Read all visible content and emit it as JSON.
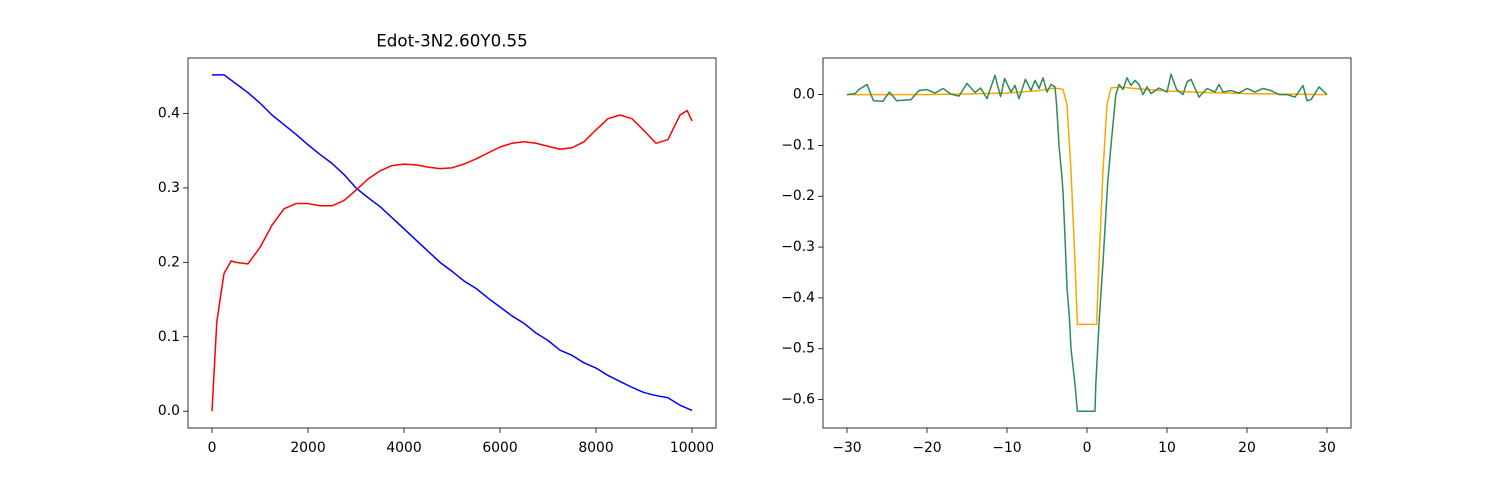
{
  "chart_data": [
    {
      "type": "line",
      "title": "Edot-3N2.60Y0.55",
      "xlim": [
        -500,
        10500
      ],
      "ylim": [
        -0.0226,
        0.4746
      ],
      "xticks": [
        0,
        2000,
        4000,
        6000,
        8000,
        10000
      ],
      "yticks": [
        {
          "value": 0,
          "label": "0.0"
        },
        {
          "value": 0.1,
          "label": "0.1"
        },
        {
          "value": 0.2,
          "label": "0.2"
        },
        {
          "value": 0.3,
          "label": "0.3"
        },
        {
          "value": 0.4,
          "label": "0.4"
        }
      ],
      "series": [
        {
          "color": "#0000ff",
          "x": [
            0,
            250,
            500,
            750,
            1000,
            1250,
            1500,
            1750,
            2000,
            2250,
            2500,
            2750,
            3000,
            3250,
            3500,
            3750,
            4000,
            4250,
            4500,
            4750,
            5000,
            5250,
            5500,
            5750,
            6000,
            6250,
            6500,
            6750,
            7000,
            7250,
            7500,
            7750,
            8000,
            8250,
            8500,
            8750,
            9000,
            9250,
            9500,
            9750,
            10000
          ],
          "values": [
            0.452,
            0.452,
            0.44,
            0.428,
            0.414,
            0.398,
            0.385,
            0.372,
            0.358,
            0.345,
            0.333,
            0.318,
            0.3,
            0.287,
            0.275,
            0.26,
            0.245,
            0.23,
            0.215,
            0.2,
            0.188,
            0.175,
            0.165,
            0.152,
            0.14,
            0.128,
            0.118,
            0.105,
            0.095,
            0.082,
            0.075,
            0.065,
            0.058,
            0.048,
            0.04,
            0.032,
            0.025,
            0.021,
            0.018,
            0.008,
            0.001
          ]
        },
        {
          "color": "#ff0000",
          "x": [
            0,
            100,
            250,
            400,
            500,
            750,
            1000,
            1250,
            1500,
            1750,
            2000,
            2250,
            2500,
            2750,
            3000,
            3250,
            3500,
            3750,
            4000,
            4250,
            4500,
            4750,
            5000,
            5250,
            5500,
            5750,
            6000,
            6250,
            6500,
            6750,
            7000,
            7250,
            7500,
            7750,
            8000,
            8250,
            8500,
            8750,
            9000,
            9250,
            9500,
            9750,
            9900,
            10000
          ],
          "values": [
            0,
            0.12,
            0.185,
            0.202,
            0.2,
            0.198,
            0.22,
            0.25,
            0.272,
            0.279,
            0.279,
            0.276,
            0.276,
            0.283,
            0.297,
            0.312,
            0.323,
            0.33,
            0.332,
            0.331,
            0.328,
            0.326,
            0.327,
            0.332,
            0.339,
            0.347,
            0.355,
            0.36,
            0.362,
            0.36,
            0.356,
            0.352,
            0.354,
            0.362,
            0.378,
            0.393,
            0.398,
            0.393,
            0.377,
            0.36,
            0.365,
            0.398,
            0.404,
            0.39
          ]
        }
      ]
    },
    {
      "type": "line",
      "xlim": [
        -33,
        33
      ],
      "ylim": [
        -0.656,
        0.072
      ],
      "xticks": [
        {
          "value": -30,
          "label": "−30"
        },
        {
          "value": -20,
          "label": "−20"
        },
        {
          "value": -10,
          "label": "−10"
        },
        0,
        10,
        20,
        30
      ],
      "yticks": [
        {
          "value": -0.6,
          "label": "−0.6"
        },
        {
          "value": -0.5,
          "label": "−0.5"
        },
        {
          "value": -0.4,
          "label": "−0.4"
        },
        {
          "value": -0.3,
          "label": "−0.3"
        },
        {
          "value": -0.2,
          "label": "−0.2"
        },
        {
          "value": -0.1,
          "label": "−0.1"
        },
        {
          "value": 0,
          "label": "0.0"
        }
      ],
      "series": [
        {
          "color": "#ffa500",
          "x": [
            -30,
            -20,
            -10,
            -6,
            -4,
            -3,
            -2.5,
            -2,
            -1.5,
            -1.2,
            1.2,
            1.5,
            2,
            2.5,
            3,
            4,
            6,
            10,
            15,
            20,
            30
          ],
          "values": [
            0,
            0,
            0.003,
            0.008,
            0.013,
            0.01,
            -0.02,
            -0.15,
            -0.33,
            -0.452,
            -0.452,
            -0.33,
            -0.15,
            -0.02,
            0.013,
            0.015,
            0.012,
            0.007,
            0.004,
            0.002,
            0
          ]
        },
        {
          "color": "#2e8b57",
          "x": [
            -30,
            -29,
            -28.5,
            -27.5,
            -26.7,
            -25.5,
            -24.7,
            -23.8,
            -22,
            -21,
            -20,
            -19,
            -18,
            -17,
            -16,
            -15,
            -14,
            -13.3,
            -12.5,
            -11.5,
            -10.8,
            -10.3,
            -9.5,
            -9,
            -8.5,
            -7.7,
            -7,
            -6.5,
            -6,
            -5.5,
            -5,
            -4.5,
            -4,
            -3.8,
            -3.5,
            -3.2,
            -3,
            -2.7,
            -2.5,
            -2.2,
            -2,
            -1.5,
            -1.2,
            1,
            1.1,
            1.5,
            2,
            2.3,
            2.6,
            3,
            3.3,
            3.6,
            4,
            4.5,
            5,
            5.5,
            6,
            6.5,
            7,
            7.5,
            8,
            9,
            10,
            10.5,
            11.2,
            12,
            12.5,
            13,
            14,
            15,
            16,
            16.5,
            17,
            18,
            19,
            20,
            21,
            22,
            23,
            24,
            25,
            26,
            27,
            27.5,
            28,
            29,
            30
          ],
          "values": [
            0,
            0.002,
            0.01,
            0.02,
            -0.012,
            -0.013,
            0.005,
            -0.012,
            -0.01,
            0.008,
            0.01,
            0.003,
            0.012,
            0.001,
            -0.003,
            0.022,
            0.004,
            0.013,
            -0.008,
            0.038,
            -0.004,
            0.032,
            0.005,
            0.018,
            -0.008,
            0.03,
            0.008,
            0.028,
            0.012,
            0.033,
            0.005,
            0.02,
            0.015,
            -0.02,
            -0.1,
            -0.15,
            -0.19,
            -0.3,
            -0.38,
            -0.44,
            -0.5,
            -0.57,
            -0.623,
            -0.623,
            -0.57,
            -0.45,
            -0.33,
            -0.25,
            -0.17,
            -0.1,
            -0.05,
            0,
            0.02,
            0.01,
            0.033,
            0.018,
            0.028,
            0.02,
            0,
            0.015,
            0.002,
            0.013,
            0.005,
            0.04,
            0.01,
            0,
            0.025,
            0.03,
            -0.005,
            0.012,
            0.005,
            0.02,
            0.005,
            0.008,
            0.003,
            0.012,
            0.005,
            0.012,
            0.008,
            0,
            0,
            -0.005,
            0.018,
            -0.012,
            -0.01,
            0.015,
            0
          ]
        }
      ]
    }
  ]
}
